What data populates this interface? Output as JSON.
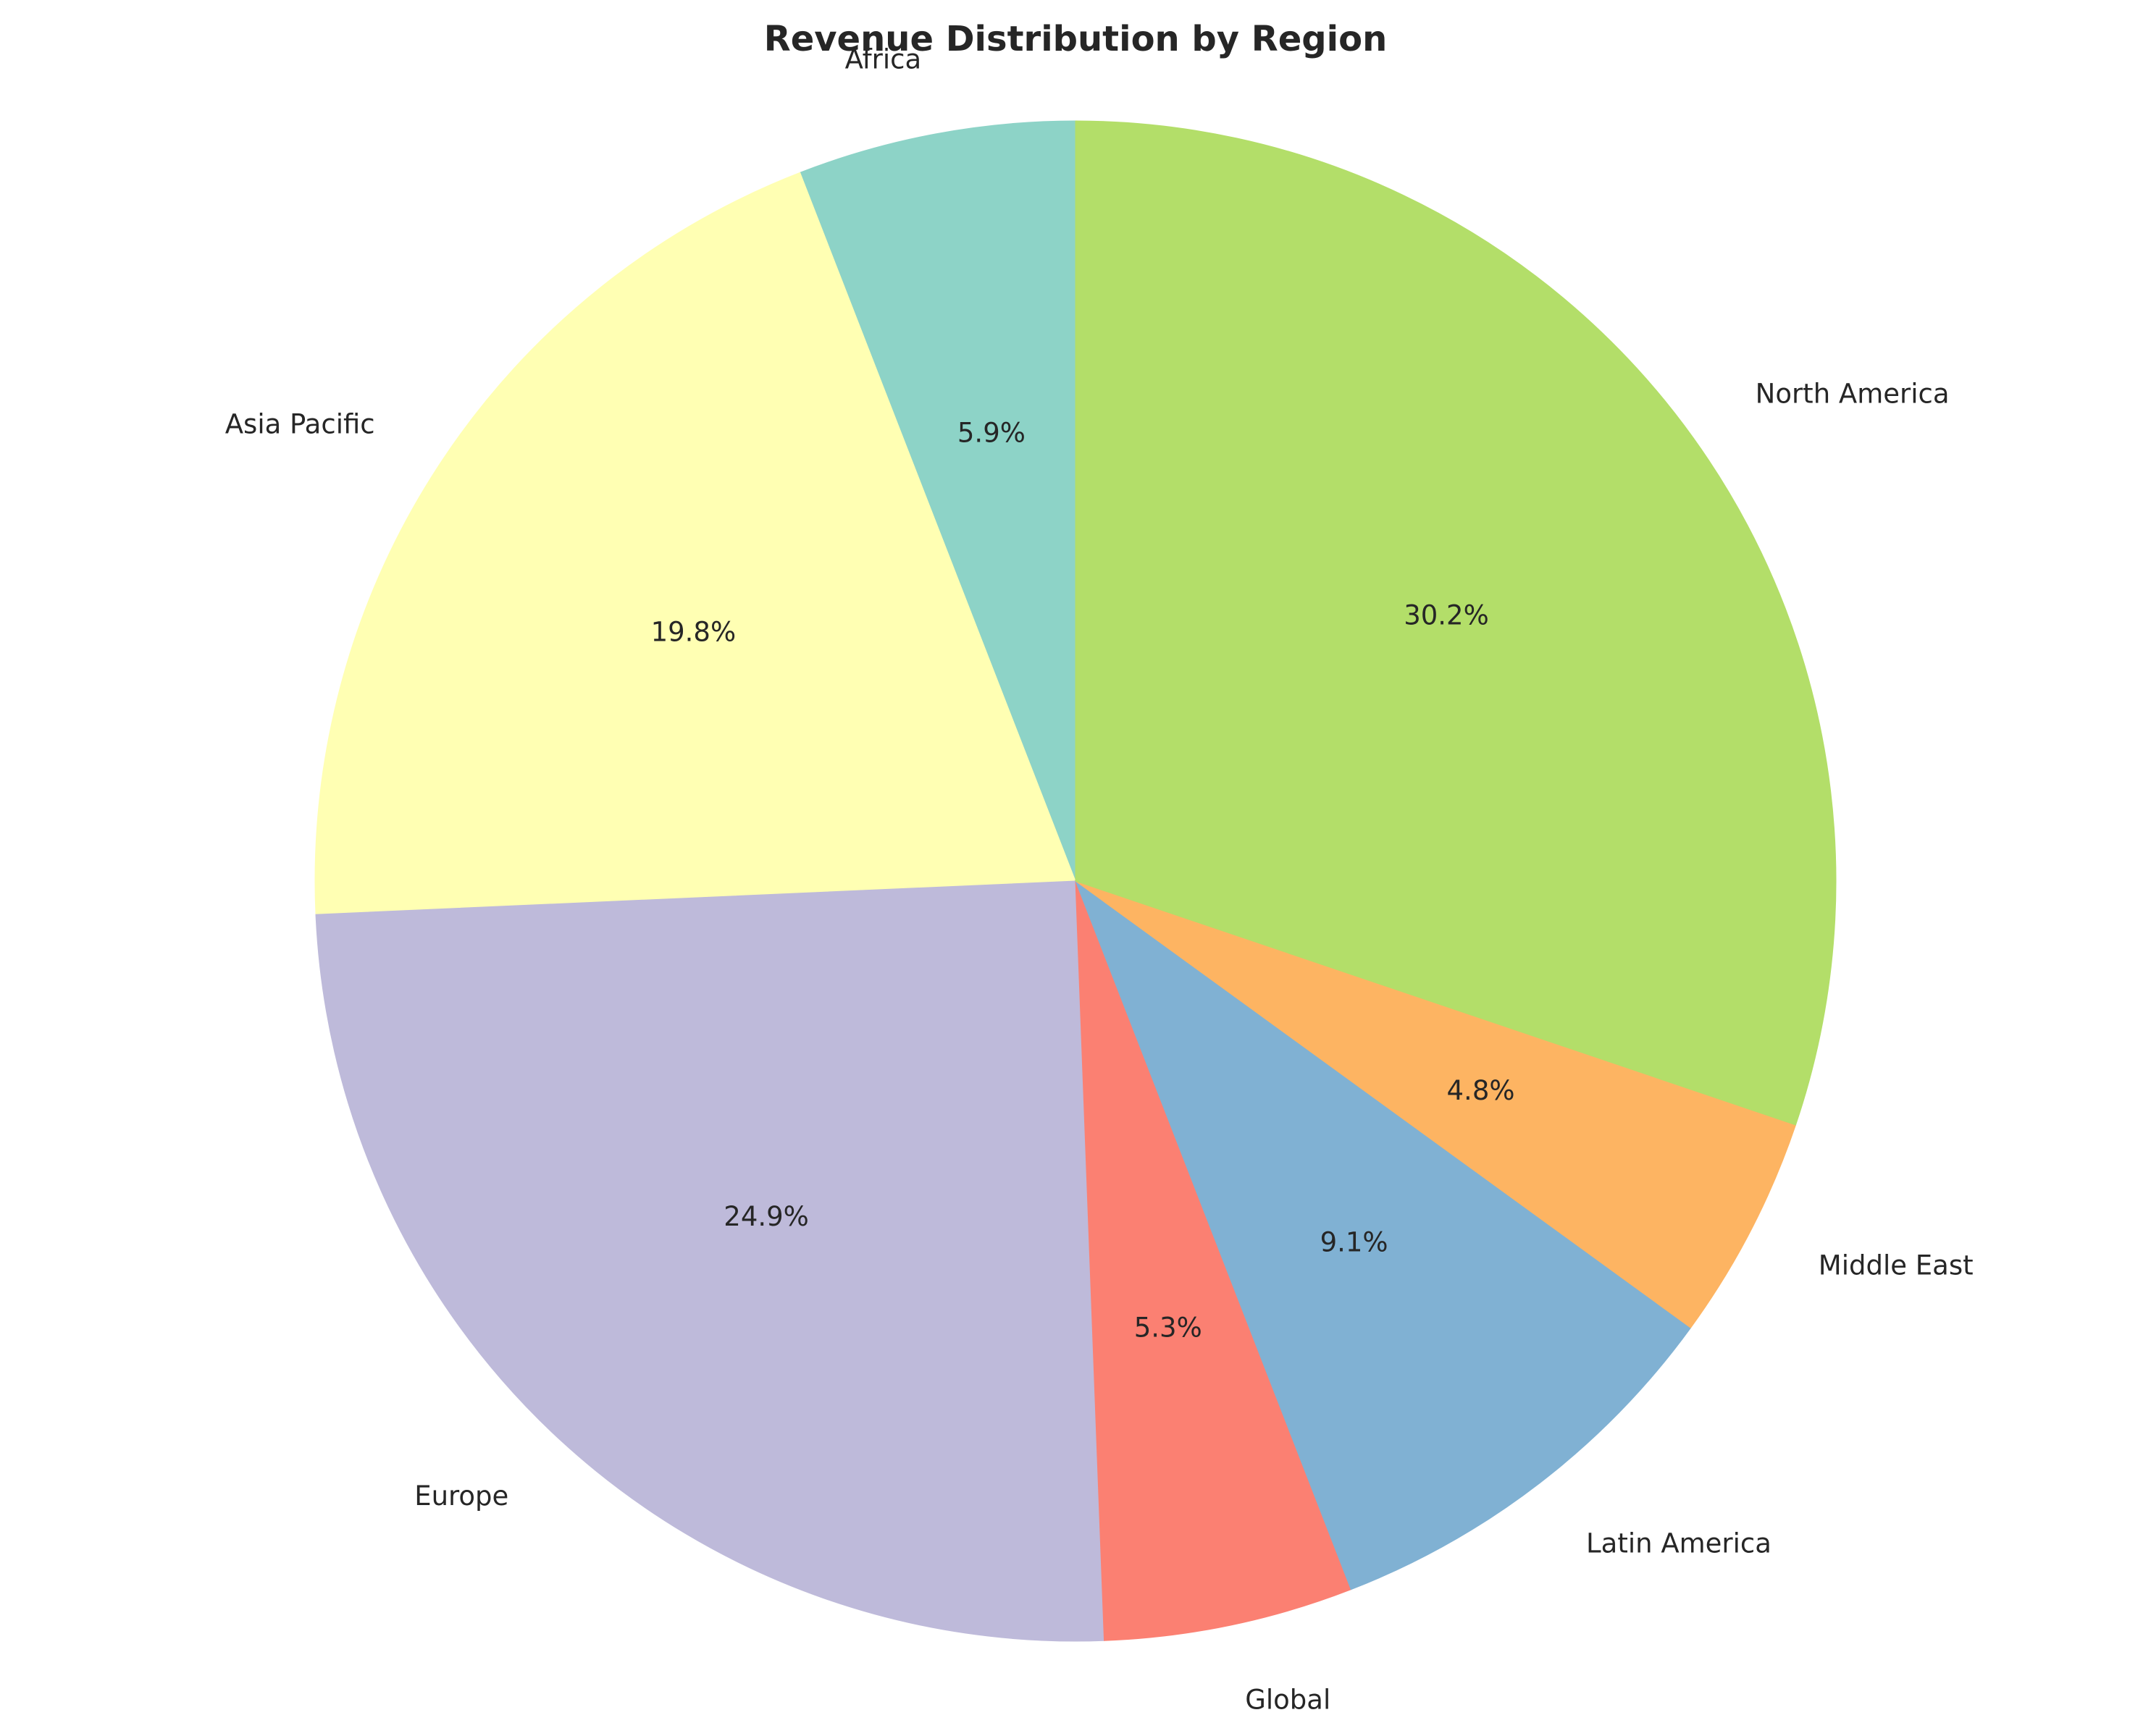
{
  "chart_data": {
    "type": "pie",
    "title": "Revenue Distribution by Region",
    "start_angle_deg": 90,
    "direction": "counterclockwise",
    "legend": "none",
    "slices": [
      {
        "label": "Africa",
        "value": 5.9,
        "pct_label": "5.9%",
        "color": "#8dd3c7"
      },
      {
        "label": "Asia Pacific",
        "value": 19.8,
        "pct_label": "19.8%",
        "color": "#ffffb3"
      },
      {
        "label": "Europe",
        "value": 24.9,
        "pct_label": "24.9%",
        "color": "#bebada"
      },
      {
        "label": "Global",
        "value": 5.3,
        "pct_label": "5.3%",
        "color": "#fb8072"
      },
      {
        "label": "Latin America",
        "value": 9.1,
        "pct_label": "9.1%",
        "color": "#80b1d3"
      },
      {
        "label": "Middle East",
        "value": 4.8,
        "pct_label": "4.8%",
        "color": "#fdb462"
      },
      {
        "label": "North America",
        "value": 30.2,
        "pct_label": "30.2%",
        "color": "#b3de69"
      }
    ]
  }
}
